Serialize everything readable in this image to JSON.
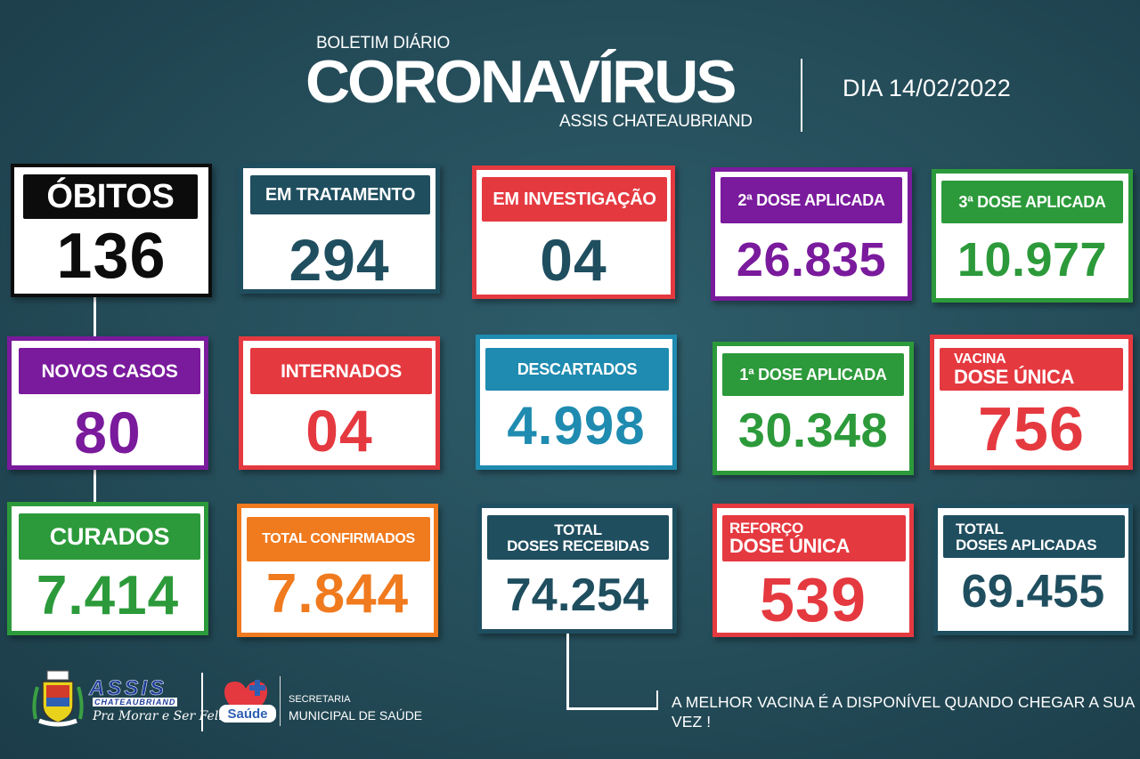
{
  "header": {
    "boletim": "BOLETIM DIÁRIO",
    "title": "CORONAVÍRUS",
    "city": "ASSIS CHATEAUBRIAND",
    "date": "DIA 14/02/2022"
  },
  "colors": {
    "black": "#0c0c0c",
    "teal": "#1f4e5f",
    "red": "#e53940",
    "purple": "#7a1a9c",
    "green": "#2c9a3a",
    "blue": "#1f8bb0",
    "orange": "#f07a1e"
  },
  "cards": {
    "obitos": {
      "label": "ÓBITOS",
      "value": "136"
    },
    "em_tratamento": {
      "label": "EM TRATAMENTO",
      "value": "294"
    },
    "em_investigacao": {
      "label": "EM INVESTIGAÇÃO",
      "value": "04"
    },
    "dose2": {
      "label": "2ª DOSE APLICADA",
      "value": "26.835"
    },
    "dose3": {
      "label": "3ª DOSE APLICADA",
      "value": "10.977"
    },
    "novos_casos": {
      "label": "NOVOS CASOS",
      "value": "80"
    },
    "internados": {
      "label": "INTERNADOS",
      "value": "04"
    },
    "descartados": {
      "label": "DESCARTADOS",
      "value": "4.998"
    },
    "dose1": {
      "label": "1ª DOSE APLICADA",
      "value": "30.348"
    },
    "vacina_dose_unica": {
      "label_line1": "VACINA",
      "label_line2": "DOSE ÚNICA",
      "value": "756"
    },
    "curados": {
      "label": "CURADOS",
      "value": "7.414"
    },
    "total_confirmados": {
      "label": "TOTAL CONFIRMADOS",
      "value": "7.844"
    },
    "total_doses_recebidas": {
      "label_line1": "TOTAL",
      "label_line2": "DOSES RECEBIDAS",
      "value": "74.254"
    },
    "reforco_dose_unica": {
      "label_line1": "REFORÇO",
      "label_line2": "DOSE ÚNICA",
      "value": "539"
    },
    "total_doses_aplicadas": {
      "label_line1": "TOTAL",
      "label_line2": "DOSES APLICADAS",
      "value": "69.455"
    }
  },
  "footer": {
    "message": "A MELHOR VACINA É A DISPONÍVEL QUANDO CHEGAR A SUA VEZ !",
    "assis_logo_title": "ASSIS",
    "assis_logo_sub": "CHATEAUBRIAND",
    "assis_slogan": "Pra Morar e Ser Feliz",
    "secretaria_line1": "SECRETARIA",
    "secretaria_line2": "MUNICIPAL DE SAÚDE",
    "saude_logo_text": "Saúde"
  }
}
